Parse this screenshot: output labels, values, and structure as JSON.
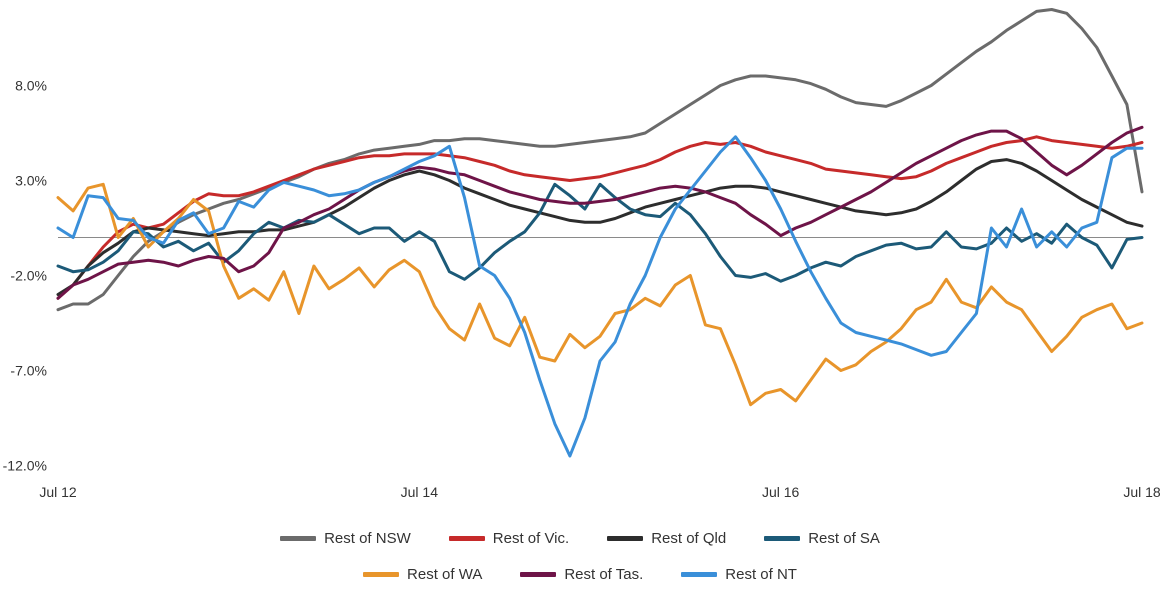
{
  "chart_data": {
    "type": "line",
    "title": "",
    "xlabel": "",
    "ylabel": "",
    "x_ticks": [
      "Jul 12",
      "Jul 14",
      "Jul 16",
      "Jul 18"
    ],
    "y_ticks": [
      "8.0%",
      "3.0%",
      "-2.0%",
      "-7.0%",
      "-12.0%"
    ],
    "x_range": [
      0,
      72
    ],
    "ylim": [
      -12.5,
      12.5
    ],
    "zero_line": true,
    "grid": false,
    "legend_position": "bottom",
    "series": [
      {
        "name": "Rest of NSW",
        "color": "#6b6b6b",
        "values": [
          -3.8,
          -3.5,
          -3.5,
          -3.0,
          -2.0,
          -1.0,
          -0.2,
          0.3,
          0.8,
          1.2,
          1.5,
          1.8,
          2.0,
          2.3,
          2.6,
          2.9,
          3.2,
          3.6,
          3.9,
          4.1,
          4.4,
          4.6,
          4.7,
          4.8,
          4.9,
          5.1,
          5.1,
          5.2,
          5.2,
          5.1,
          5.0,
          4.9,
          4.8,
          4.8,
          4.9,
          5.0,
          5.1,
          5.2,
          5.3,
          5.5,
          6.0,
          6.5,
          7.0,
          7.5,
          8.0,
          8.3,
          8.5,
          8.5,
          8.4,
          8.3,
          8.1,
          7.8,
          7.4,
          7.1,
          7.0,
          6.9,
          7.2,
          7.6,
          8.0,
          8.6,
          9.2,
          9.8,
          10.3,
          10.9,
          11.4,
          11.9,
          12.0,
          11.8,
          11.0,
          10.0,
          8.5,
          7.0,
          2.4
        ]
      },
      {
        "name": "Rest of Vic.",
        "color": "#c62a2a",
        "values": [
          -3.2,
          -2.5,
          -1.5,
          -0.5,
          0.3,
          0.7,
          0.5,
          0.7,
          1.3,
          1.9,
          2.3,
          2.2,
          2.2,
          2.4,
          2.7,
          3.0,
          3.3,
          3.6,
          3.8,
          4.0,
          4.2,
          4.3,
          4.3,
          4.4,
          4.4,
          4.4,
          4.3,
          4.2,
          4.0,
          3.8,
          3.5,
          3.3,
          3.2,
          3.1,
          3.0,
          3.1,
          3.2,
          3.4,
          3.6,
          3.8,
          4.1,
          4.5,
          4.8,
          5.0,
          4.9,
          5.0,
          4.8,
          4.5,
          4.3,
          4.1,
          3.9,
          3.6,
          3.5,
          3.4,
          3.3,
          3.2,
          3.1,
          3.2,
          3.5,
          3.9,
          4.2,
          4.5,
          4.8,
          5.0,
          5.1,
          5.3,
          5.1,
          5.0,
          4.9,
          4.8,
          4.7,
          4.8,
          5.0
        ]
      },
      {
        "name": "Rest of Qld",
        "color": "#2d2d2d",
        "values": [
          -3.0,
          -2.5,
          -1.5,
          -0.8,
          -0.3,
          0.3,
          0.5,
          0.4,
          0.3,
          0.2,
          0.1,
          0.2,
          0.3,
          0.3,
          0.4,
          0.4,
          0.6,
          0.8,
          1.2,
          1.6,
          2.1,
          2.6,
          3.0,
          3.3,
          3.5,
          3.3,
          3.0,
          2.6,
          2.3,
          2.0,
          1.7,
          1.5,
          1.3,
          1.1,
          0.9,
          0.8,
          0.8,
          1.0,
          1.3,
          1.6,
          1.8,
          2.0,
          2.2,
          2.4,
          2.6,
          2.7,
          2.7,
          2.6,
          2.4,
          2.2,
          2.0,
          1.8,
          1.6,
          1.4,
          1.3,
          1.2,
          1.3,
          1.5,
          1.9,
          2.4,
          3.0,
          3.6,
          4.0,
          4.1,
          3.9,
          3.5,
          3.0,
          2.5,
          2.0,
          1.6,
          1.2,
          0.8,
          0.6
        ]
      },
      {
        "name": "Rest of SA",
        "color": "#1c5a78",
        "values": [
          -1.5,
          -1.8,
          -1.7,
          -1.3,
          -0.7,
          0.3,
          0.2,
          -0.5,
          -0.2,
          -0.7,
          -0.3,
          -1.3,
          -0.7,
          0.2,
          0.8,
          0.5,
          0.9,
          0.8,
          1.2,
          0.7,
          0.2,
          0.5,
          0.5,
          -0.2,
          0.3,
          -0.2,
          -1.8,
          -2.2,
          -1.6,
          -0.8,
          -0.2,
          0.3,
          1.3,
          2.8,
          2.2,
          1.5,
          2.8,
          2.1,
          1.5,
          1.2,
          1.1,
          1.8,
          1.2,
          0.2,
          -1.0,
          -2.0,
          -2.1,
          -1.9,
          -2.3,
          -2.0,
          -1.6,
          -1.3,
          -1.5,
          -1.0,
          -0.7,
          -0.4,
          -0.3,
          -0.6,
          -0.5,
          0.3,
          -0.5,
          -0.6,
          -0.3,
          0.5,
          -0.2,
          0.2,
          -0.3,
          0.7,
          0.0,
          -0.4,
          -1.6,
          -0.1,
          0.0
        ]
      },
      {
        "name": "Rest of WA",
        "color": "#e8952b",
        "values": [
          2.1,
          1.4,
          2.6,
          2.8,
          0.0,
          1.0,
          -0.5,
          0.3,
          1.0,
          2.0,
          1.4,
          -1.5,
          -3.2,
          -2.7,
          -3.3,
          -1.8,
          -4.0,
          -1.5,
          -2.7,
          -2.2,
          -1.6,
          -2.6,
          -1.7,
          -1.2,
          -1.8,
          -3.6,
          -4.8,
          -5.4,
          -3.5,
          -5.3,
          -5.7,
          -4.2,
          -6.3,
          -6.5,
          -5.1,
          -5.8,
          -5.2,
          -4.0,
          -3.8,
          -3.2,
          -3.6,
          -2.5,
          -2.0,
          -4.6,
          -4.8,
          -6.7,
          -8.8,
          -8.2,
          -8.0,
          -8.6,
          -7.5,
          -6.4,
          -7.0,
          -6.7,
          -6.0,
          -5.5,
          -4.8,
          -3.8,
          -3.4,
          -2.2,
          -3.4,
          -3.7,
          -2.6,
          -3.4,
          -3.8,
          -4.9,
          -6.0,
          -5.2,
          -4.2,
          -3.8,
          -3.5,
          -4.8,
          -4.5
        ]
      },
      {
        "name": "Rest of Tas.",
        "color": "#6e1448",
        "values": [
          -3.2,
          -2.5,
          -2.2,
          -1.8,
          -1.4,
          -1.3,
          -1.2,
          -1.3,
          -1.5,
          -1.2,
          -1.0,
          -1.1,
          -1.8,
          -1.5,
          -0.8,
          0.5,
          0.8,
          1.2,
          1.5,
          2.0,
          2.5,
          2.9,
          3.2,
          3.5,
          3.7,
          3.6,
          3.4,
          3.3,
          3.0,
          2.7,
          2.4,
          2.2,
          2.0,
          1.9,
          1.8,
          1.8,
          1.9,
          2.0,
          2.2,
          2.4,
          2.6,
          2.7,
          2.6,
          2.4,
          2.1,
          1.8,
          1.2,
          0.7,
          0.1,
          0.5,
          0.8,
          1.2,
          1.6,
          2.0,
          2.4,
          2.9,
          3.4,
          3.9,
          4.3,
          4.7,
          5.1,
          5.4,
          5.6,
          5.6,
          5.2,
          4.5,
          3.8,
          3.3,
          3.8,
          4.4,
          5.0,
          5.5,
          5.8
        ]
      },
      {
        "name": "Rest of NT",
        "color": "#3a8fd9",
        "values": [
          0.5,
          0.0,
          2.2,
          2.1,
          1.0,
          0.9,
          0.0,
          -0.3,
          0.9,
          1.3,
          0.2,
          0.5,
          1.9,
          1.6,
          2.5,
          2.9,
          2.7,
          2.5,
          2.2,
          2.3,
          2.5,
          2.9,
          3.2,
          3.6,
          4.0,
          4.3,
          4.8,
          2.1,
          -1.5,
          -2.0,
          -3.2,
          -5.0,
          -7.5,
          -9.8,
          -11.5,
          -9.5,
          -6.5,
          -5.5,
          -3.5,
          -2.0,
          0.0,
          1.5,
          2.5,
          3.5,
          4.5,
          5.3,
          4.2,
          3.0,
          1.5,
          -0.2,
          -1.8,
          -3.2,
          -4.5,
          -5.0,
          -5.2,
          -5.4,
          -5.6,
          -5.9,
          -6.2,
          -6.0,
          -5.0,
          -4.0,
          0.5,
          -0.5,
          1.5,
          -0.5,
          0.3,
          -0.5,
          0.5,
          0.8,
          4.2,
          4.7,
          4.7
        ]
      }
    ]
  }
}
